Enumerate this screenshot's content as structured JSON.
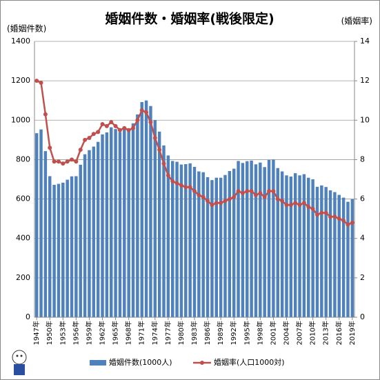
{
  "chart_data": {
    "type": "bar-line",
    "title": "婚姻件数・婚姻率(戦後限定)",
    "y_label": "(婚姻件数)",
    "y2_label": "(婚姻率)",
    "categories": [
      "1947年",
      null,
      null,
      "1950年",
      null,
      null,
      "1953年",
      null,
      null,
      "1956年",
      null,
      null,
      "1959年",
      null,
      null,
      "1962年",
      null,
      null,
      "1965年",
      null,
      null,
      "1968年",
      null,
      null,
      "1971年",
      null,
      null,
      "1974年",
      null,
      null,
      "1977年",
      null,
      null,
      "1980年",
      null,
      null,
      "1983年",
      null,
      null,
      "1986年",
      null,
      null,
      "1989年",
      null,
      null,
      "1992年",
      null,
      null,
      "1995年",
      null,
      null,
      "1998年",
      null,
      null,
      "2001年",
      null,
      null,
      "2004年",
      null,
      null,
      "2007年",
      null,
      null,
      "2010年",
      null,
      null,
      "2013年",
      null,
      null,
      "2016年",
      null,
      null,
      "2019年"
    ],
    "series": [
      {
        "name": "婚姻件数(1000人)",
        "color": "#4f81bd",
        "kind": "bar",
        "values": [
          934,
          953,
          843,
          716,
          672,
          677,
          683,
          698,
          715,
          716,
          774,
          827,
          848,
          866,
          890,
          928,
          938,
          964,
          955,
          940,
          954,
          957,
          984,
          1029,
          1092,
          1100,
          1072,
          1001,
          942,
          872,
          821,
          793,
          789,
          775,
          777,
          781,
          763,
          740,
          736,
          711,
          696,
          708,
          708,
          722,
          742,
          754,
          793,
          783,
          792,
          795,
          776,
          785,
          762,
          798,
          800,
          757,
          740,
          720,
          714,
          731,
          720,
          726,
          708,
          700,
          662,
          669,
          661,
          644,
          635,
          621,
          607,
          586,
          599
        ]
      },
      {
        "name": "婚姻率(人口1000対)",
        "color": "#c0504d",
        "kind": "line",
        "axis": "y2",
        "values": [
          12.0,
          11.9,
          10.3,
          8.6,
          7.9,
          7.9,
          7.8,
          7.9,
          8.0,
          7.9,
          8.5,
          9.0,
          9.1,
          9.3,
          9.4,
          9.8,
          9.7,
          9.9,
          9.7,
          9.5,
          9.6,
          9.5,
          9.6,
          10.0,
          10.5,
          10.4,
          9.9,
          9.1,
          8.5,
          7.8,
          7.2,
          6.9,
          6.8,
          6.7,
          6.6,
          6.6,
          6.4,
          6.2,
          6.1,
          5.9,
          5.7,
          5.8,
          5.8,
          5.9,
          6.0,
          6.1,
          6.4,
          6.3,
          6.4,
          6.4,
          6.2,
          6.3,
          6.1,
          6.4,
          6.4,
          6.0,
          5.9,
          5.7,
          5.7,
          5.8,
          5.7,
          5.8,
          5.6,
          5.5,
          5.2,
          5.3,
          5.3,
          5.1,
          5.1,
          5.0,
          4.9,
          4.7,
          4.8
        ]
      }
    ],
    "ylim": [
      0,
      1400
    ],
    "yticks": [
      0,
      200,
      400,
      600,
      800,
      1000,
      1200,
      1400
    ],
    "y2lim": [
      0,
      14
    ],
    "y2ticks": [
      0,
      2,
      4,
      6,
      8,
      10,
      12,
      14
    ],
    "grid": true,
    "legend": "bottom"
  }
}
